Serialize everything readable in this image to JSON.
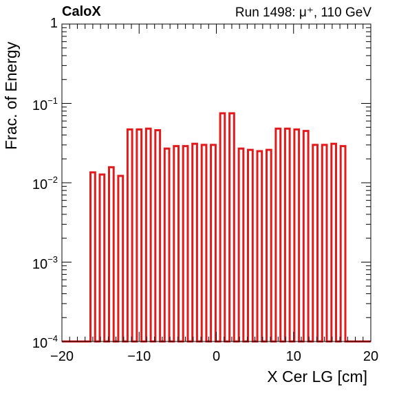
{
  "header": {
    "left": "CaloX",
    "right": "Run 1498:   μ⁺, 110 GeV"
  },
  "colors": {
    "line": "#e31a1c",
    "axis": "#000000",
    "background": "#ffffff"
  },
  "chart_data": {
    "type": "bar",
    "title": "",
    "xlabel": "X Cer LG [cm]",
    "ylabel": "Frac. of Energy",
    "xlim": [
      -20,
      20
    ],
    "ylim": [
      0.0001,
      1
    ],
    "yscale": "log",
    "grid": false,
    "legend": "none",
    "x_ticks": [
      "−20",
      "−10",
      "0",
      "10",
      "20"
    ],
    "y_ticks": [
      {
        "base": "10",
        "exp": "−4"
      },
      {
        "base": "10",
        "exp": "−3"
      },
      {
        "base": "10",
        "exp": "−2"
      },
      {
        "base": "10",
        "exp": "−1"
      },
      {
        "base": "1",
        "exp": ""
      }
    ],
    "bar_width_cm": 0.6,
    "x": [
      -16,
      -14.8,
      -13.6,
      -12.4,
      -11.2,
      -10,
      -8.8,
      -7.6,
      -6.4,
      -5.2,
      -4,
      -2.8,
      -1.6,
      -0.4,
      0.8,
      2,
      3.2,
      4.4,
      5.6,
      6.8,
      8,
      9.2,
      10.4,
      11.6,
      12.8,
      14,
      15.2,
      16.4
    ],
    "values": [
      0.0135,
      0.0127,
      0.0157,
      0.0122,
      0.047,
      0.047,
      0.048,
      0.046,
      0.027,
      0.029,
      0.029,
      0.031,
      0.03,
      0.03,
      0.075,
      0.075,
      0.027,
      0.026,
      0.025,
      0.026,
      0.048,
      0.048,
      0.047,
      0.045,
      0.03,
      0.03,
      0.031,
      0.029
    ]
  }
}
